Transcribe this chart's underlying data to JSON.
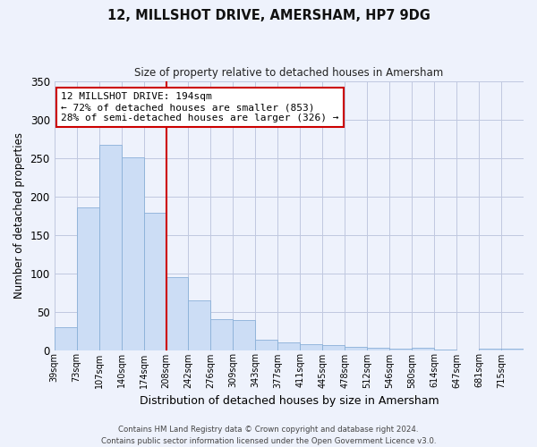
{
  "title": "12, MILLSHOT DRIVE, AMERSHAM, HP7 9DG",
  "subtitle": "Size of property relative to detached houses in Amersham",
  "xlabel": "Distribution of detached houses by size in Amersham",
  "ylabel": "Number of detached properties",
  "bin_labels": [
    "39sqm",
    "73sqm",
    "107sqm",
    "140sqm",
    "174sqm",
    "208sqm",
    "242sqm",
    "276sqm",
    "309sqm",
    "343sqm",
    "377sqm",
    "411sqm",
    "445sqm",
    "478sqm",
    "512sqm",
    "546sqm",
    "580sqm",
    "614sqm",
    "647sqm",
    "681sqm",
    "715sqm"
  ],
  "bar_values": [
    30,
    186,
    267,
    251,
    178,
    95,
    65,
    40,
    39,
    13,
    10,
    7,
    6,
    4,
    3,
    2,
    3,
    1,
    0,
    2,
    2
  ],
  "bar_color": "#ccddf5",
  "bar_edge_color": "#8ab0d8",
  "vline_x_index": 5,
  "vline_color": "#cc0000",
  "ylim": [
    0,
    350
  ],
  "yticks": [
    0,
    50,
    100,
    150,
    200,
    250,
    300,
    350
  ],
  "annotation_title": "12 MILLSHOT DRIVE: 194sqm",
  "annotation_line1": "← 72% of detached houses are smaller (853)",
  "annotation_line2": "28% of semi-detached houses are larger (326) →",
  "annotation_box_color": "#ffffff",
  "annotation_box_edge": "#cc0000",
  "footer_line1": "Contains HM Land Registry data © Crown copyright and database right 2024.",
  "footer_line2": "Contains public sector information licensed under the Open Government Licence v3.0.",
  "bg_color": "#eef2fc"
}
